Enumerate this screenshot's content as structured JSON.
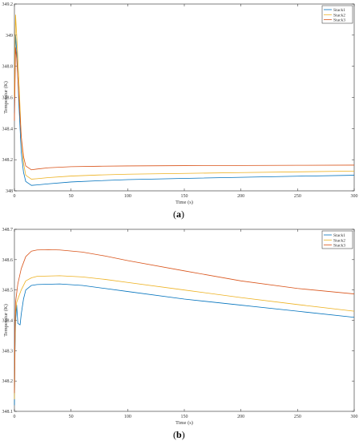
{
  "chart_data": [
    {
      "type": "line",
      "caption": "(a)",
      "xlabel": "Time (s)",
      "ylabel": "Temperatur (K)",
      "xlim": [
        0,
        300
      ],
      "ylim": [
        348,
        349.2
      ],
      "xticks": [
        0,
        50,
        100,
        150,
        200,
        250,
        300
      ],
      "xtick_labels": [
        "0",
        "50",
        "100",
        "150",
        "200",
        "250",
        "300"
      ],
      "yticks": [
        348,
        348.2,
        348.4,
        348.6,
        348.8,
        349,
        349.2
      ],
      "ytick_labels": [
        "348",
        "348.2",
        "348.4",
        "348.6",
        "348.8",
        "349",
        "349.2"
      ],
      "legend_position": "top-right",
      "grid": false,
      "series": [
        {
          "name": "Stack1",
          "color": "#0072BD",
          "points": [
            [
              0,
              348.5
            ],
            [
              1,
              349.0
            ],
            [
              2,
              348.9
            ],
            [
              4,
              348.55
            ],
            [
              6,
              348.25
            ],
            [
              8,
              348.12
            ],
            [
              10,
              348.06
            ],
            [
              15,
              348.035
            ],
            [
              20,
              348.038
            ],
            [
              30,
              348.045
            ],
            [
              50,
              348.057
            ],
            [
              75,
              348.065
            ],
            [
              100,
              348.072
            ],
            [
              150,
              348.08
            ],
            [
              200,
              348.087
            ],
            [
              250,
              348.094
            ],
            [
              300,
              348.1
            ]
          ]
        },
        {
          "name": "Stack2",
          "color": "#EDB120",
          "points": [
            [
              0,
              348.6
            ],
            [
              1,
              349.13
            ],
            [
              2,
              349.0
            ],
            [
              4,
              348.7
            ],
            [
              6,
              348.35
            ],
            [
              8,
              348.18
            ],
            [
              10,
              348.1
            ],
            [
              15,
              348.075
            ],
            [
              20,
              348.078
            ],
            [
              30,
              348.085
            ],
            [
              50,
              348.095
            ],
            [
              75,
              348.102
            ],
            [
              100,
              348.107
            ],
            [
              150,
              348.112
            ],
            [
              200,
              348.117
            ],
            [
              250,
              348.122
            ],
            [
              300,
              348.127
            ]
          ]
        },
        {
          "name": "Stack3",
          "color": "#D95319",
          "points": [
            [
              0,
              348.45
            ],
            [
              1,
              348.92
            ],
            [
              2,
              348.85
            ],
            [
              4,
              348.6
            ],
            [
              6,
              348.35
            ],
            [
              8,
              348.22
            ],
            [
              10,
              348.16
            ],
            [
              15,
              348.135
            ],
            [
              20,
              348.14
            ],
            [
              30,
              348.148
            ],
            [
              50,
              348.155
            ],
            [
              75,
              348.158
            ],
            [
              100,
              348.16
            ],
            [
              150,
              348.162
            ],
            [
              200,
              348.163
            ],
            [
              250,
              348.164
            ],
            [
              300,
              348.165
            ]
          ]
        }
      ]
    },
    {
      "type": "line",
      "caption": "(b)",
      "xlabel": "Time (s)",
      "ylabel": "Temperatur (K)",
      "xlim": [
        0,
        300
      ],
      "ylim": [
        348.1,
        348.7
      ],
      "xticks": [
        0,
        50,
        100,
        150,
        200,
        250,
        300
      ],
      "xtick_labels": [
        "0",
        "50",
        "100",
        "150",
        "200",
        "250",
        "300"
      ],
      "yticks": [
        348.1,
        348.2,
        348.3,
        348.4,
        348.5,
        348.6,
        348.7
      ],
      "ytick_labels": [
        "348.1",
        "348.2",
        "348.3",
        "348.4",
        "348.5",
        "348.6",
        "348.7"
      ],
      "legend_position": "top-right",
      "grid": false,
      "series": [
        {
          "name": "Stack1",
          "color": "#0072BD",
          "points": [
            [
              0,
              348.12
            ],
            [
              0.5,
              348.3
            ],
            [
              1,
              348.4
            ],
            [
              2,
              348.45
            ],
            [
              3,
              348.39
            ],
            [
              5,
              348.385
            ],
            [
              6,
              348.42
            ],
            [
              8,
              348.47
            ],
            [
              10,
              348.5
            ],
            [
              15,
              348.515
            ],
            [
              20,
              348.518
            ],
            [
              40,
              348.52
            ],
            [
              60,
              348.515
            ],
            [
              80,
              348.505
            ],
            [
              100,
              348.495
            ],
            [
              150,
              348.47
            ],
            [
              200,
              348.45
            ],
            [
              250,
              348.43
            ],
            [
              300,
              348.41
            ]
          ]
        },
        {
          "name": "Stack2",
          "color": "#EDB120",
          "points": [
            [
              0,
              348.14
            ],
            [
              0.5,
              348.32
            ],
            [
              1,
              348.42
            ],
            [
              2,
              348.46
            ],
            [
              4,
              348.48
            ],
            [
              6,
              348.5
            ],
            [
              10,
              348.53
            ],
            [
              15,
              348.54
            ],
            [
              20,
              348.545
            ],
            [
              40,
              348.547
            ],
            [
              60,
              348.543
            ],
            [
              80,
              348.535
            ],
            [
              100,
              348.525
            ],
            [
              150,
              348.5
            ],
            [
              200,
              348.475
            ],
            [
              250,
              348.452
            ],
            [
              300,
              348.43
            ]
          ]
        },
        {
          "name": "Stack3",
          "color": "#D95319",
          "points": [
            [
              0,
              348.16
            ],
            [
              0.5,
              348.36
            ],
            [
              1,
              348.46
            ],
            [
              3,
              348.52
            ],
            [
              6,
              348.57
            ],
            [
              10,
              348.61
            ],
            [
              15,
              348.628
            ],
            [
              20,
              348.632
            ],
            [
              30,
              348.633
            ],
            [
              40,
              348.632
            ],
            [
              60,
              348.625
            ],
            [
              80,
              348.612
            ],
            [
              100,
              348.597
            ],
            [
              150,
              348.563
            ],
            [
              200,
              348.53
            ],
            [
              250,
              348.505
            ],
            [
              300,
              348.487
            ]
          ]
        }
      ]
    }
  ]
}
